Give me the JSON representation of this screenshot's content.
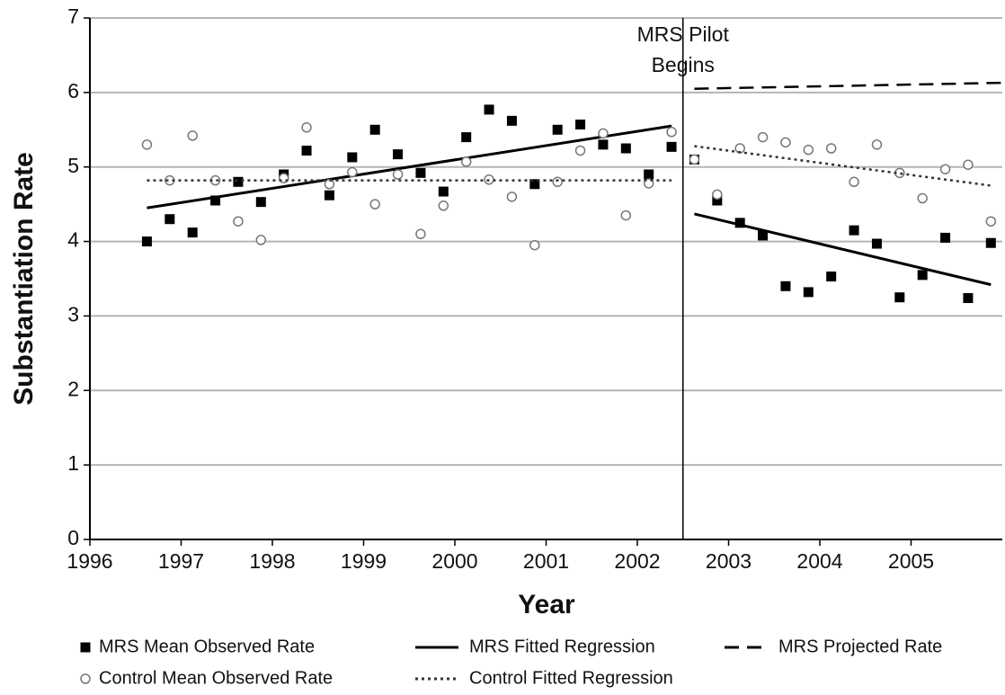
{
  "chart_data": {
    "type": "scatter",
    "ylabel": "Substantiation Rate",
    "xlabel": "Year",
    "xlim": [
      1996,
      2006
    ],
    "xticks": [
      1996,
      1997,
      1998,
      1999,
      2000,
      2001,
      2002,
      2003,
      2004,
      2005
    ],
    "ylim": [
      0,
      7
    ],
    "yticks": [
      0,
      1,
      2,
      3,
      4,
      5,
      6,
      7
    ],
    "grid": true,
    "event_x": 2002.5,
    "annotation": [
      "MRS Pilot",
      "Begins"
    ],
    "series": [
      {
        "name": "MRS Mean Observed Rate",
        "mode": "square",
        "color": "#000000",
        "x": [
          1996.625,
          1996.875,
          1997.125,
          1997.375,
          1997.625,
          1997.875,
          1998.125,
          1998.375,
          1998.625,
          1998.875,
          1999.125,
          1999.375,
          1999.625,
          1999.875,
          2000.125,
          2000.375,
          2000.625,
          2000.875,
          2001.125,
          2001.375,
          2001.625,
          2001.875,
          2002.125,
          2002.375,
          2002.625,
          2002.875,
          2003.125,
          2003.375,
          2003.625,
          2003.875,
          2004.125,
          2004.375,
          2004.625,
          2004.875,
          2005.125,
          2005.375,
          2005.625,
          2005.875
        ],
        "values": [
          4.0,
          4.3,
          4.12,
          4.55,
          4.8,
          4.53,
          4.9,
          5.22,
          4.62,
          5.13,
          5.5,
          5.17,
          4.92,
          4.67,
          5.4,
          5.77,
          5.62,
          4.77,
          5.5,
          5.57,
          5.3,
          5.25,
          4.9,
          5.27,
          5.1,
          4.55,
          4.25,
          4.08,
          3.4,
          3.32,
          3.53,
          4.15,
          3.97,
          3.25,
          3.55,
          4.05,
          3.24,
          3.98
        ]
      },
      {
        "name": "MRS Fitted Regression",
        "mode": "solid",
        "color": "#000000",
        "x": [
          1996.625,
          2002.375,
          2002.5,
          2002.625,
          2005.875
        ],
        "values": [
          4.45,
          5.55,
          null,
          4.37,
          3.42
        ]
      },
      {
        "name": "MRS Projected Rate",
        "mode": "dashed",
        "color": "#000000",
        "x": [
          2002.625,
          2006.0
        ],
        "values": [
          6.05,
          6.13
        ]
      },
      {
        "name": "Control Mean Observed Rate",
        "mode": "circle",
        "color": "#777777",
        "x": [
          1996.625,
          1996.875,
          1997.125,
          1997.375,
          1997.625,
          1997.875,
          1998.125,
          1998.375,
          1998.625,
          1998.875,
          1999.125,
          1999.375,
          1999.625,
          1999.875,
          2000.125,
          2000.375,
          2000.625,
          2000.875,
          2001.125,
          2001.375,
          2001.625,
          2001.875,
          2002.125,
          2002.375,
          2002.625,
          2002.875,
          2003.125,
          2003.375,
          2003.625,
          2003.875,
          2004.125,
          2004.375,
          2004.625,
          2004.875,
          2005.125,
          2005.375,
          2005.625,
          2005.875
        ],
        "values": [
          5.3,
          4.82,
          5.42,
          4.82,
          4.27,
          4.02,
          4.85,
          5.53,
          4.77,
          4.93,
          4.5,
          4.9,
          4.1,
          4.48,
          5.07,
          4.83,
          4.6,
          3.95,
          4.8,
          5.22,
          5.45,
          4.35,
          4.78,
          5.47,
          5.1,
          4.63,
          5.25,
          5.4,
          5.33,
          5.23,
          5.25,
          4.8,
          5.3,
          4.92,
          4.58,
          4.97,
          5.03,
          4.27
        ]
      },
      {
        "name": "Control Fitted Regression",
        "mode": "dotted",
        "color": "#333333",
        "x": [
          1996.625,
          2002.375,
          2002.5,
          2002.625,
          2005.875
        ],
        "values": [
          4.82,
          4.82,
          null,
          5.28,
          4.75
        ]
      }
    ]
  }
}
